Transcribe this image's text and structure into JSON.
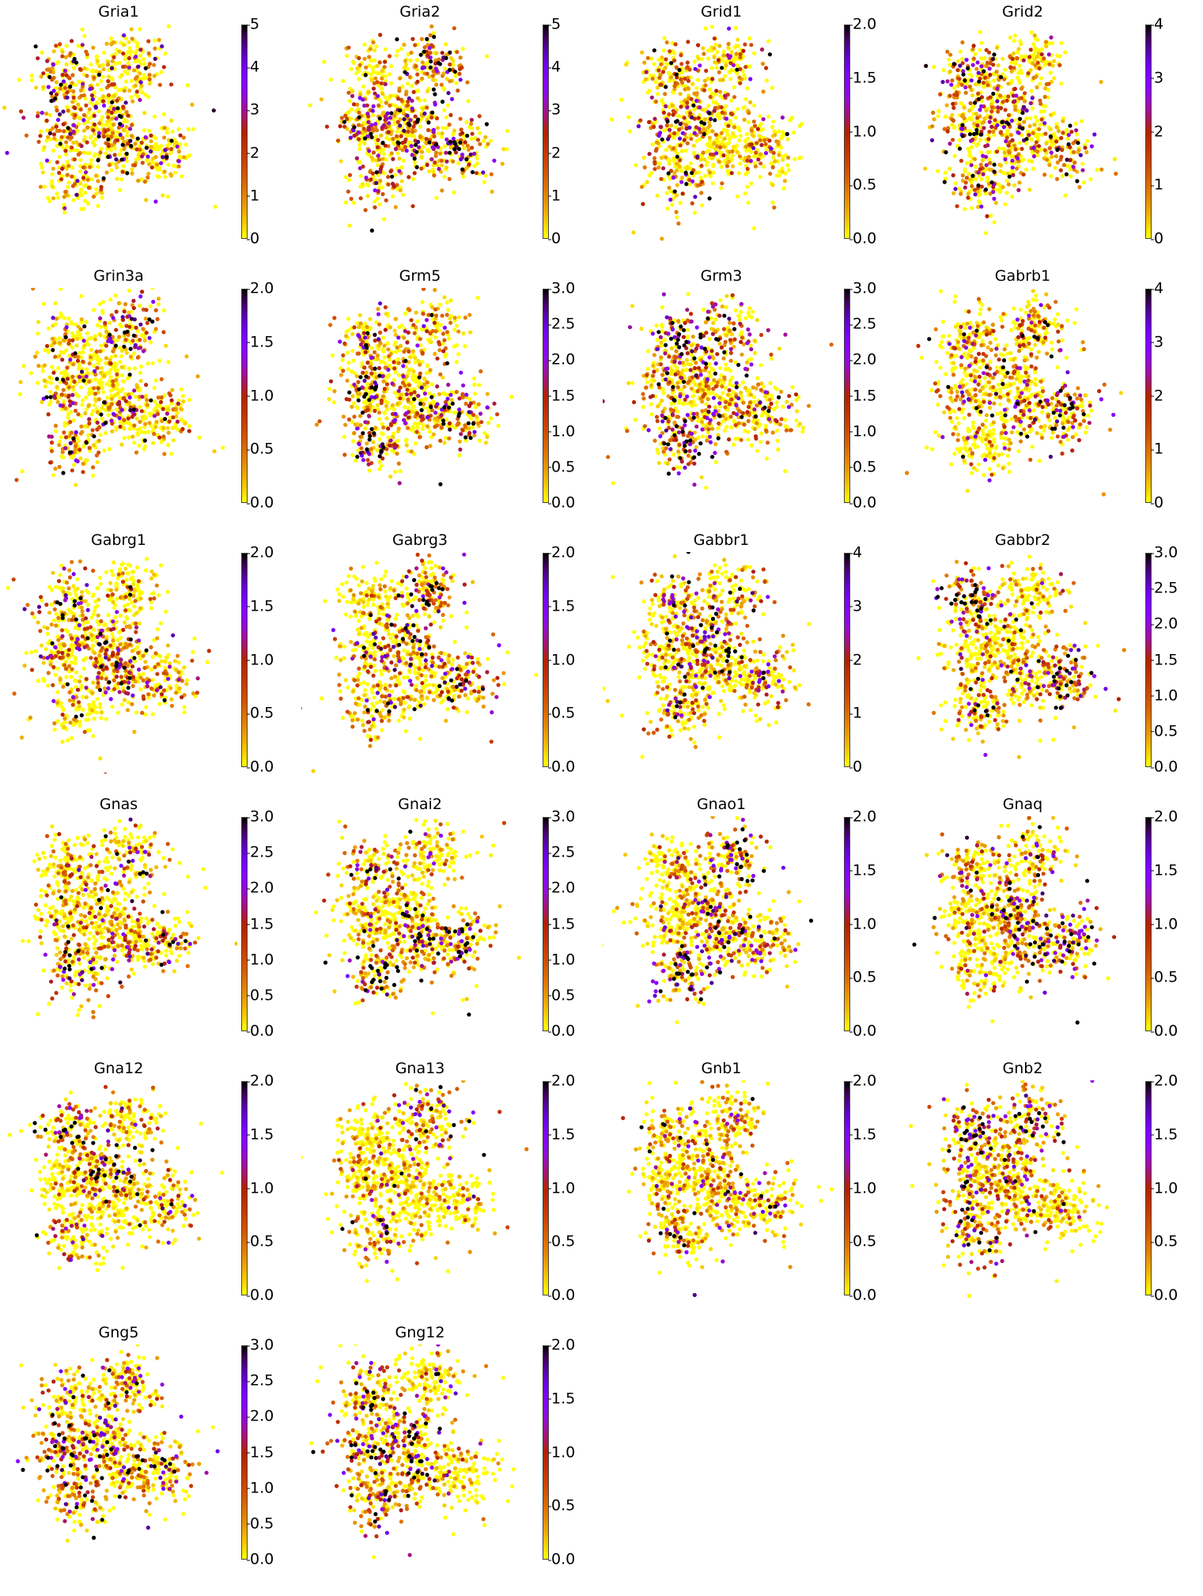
{
  "chart_data": {
    "type": "scatter",
    "description_of_layout": "embedding",
    "colormap": "gnuplot_r",
    "clusters": [
      {
        "x": -5.4,
        "y": 5.8
      },
      {
        "x": 0.4,
        "y": 6.9
      },
      {
        "x": -5.7,
        "y": 0.9
      },
      {
        "x": -2.0,
        "y": 1.9
      },
      {
        "x": -0.5,
        "y": -1.2
      },
      {
        "x": 3.5,
        "y": -1.5
      },
      {
        "x": -4.7,
        "y": -4.2
      }
    ],
    "xlim": [
      -11,
      10
    ],
    "ylim": [
      -10,
      10
    ],
    "panels": [
      {
        "title": "Gria1",
        "vmax": 5,
        "ticks": [
          "0",
          "1",
          "2",
          "3",
          "4",
          "5"
        ]
      },
      {
        "title": "Gria2",
        "vmax": 5,
        "ticks": [
          "0",
          "1",
          "2",
          "3",
          "4",
          "5"
        ]
      },
      {
        "title": "Grid1",
        "vmax": 2,
        "ticks": [
          "0.0",
          "0.5",
          "1.0",
          "1.5",
          "2.0"
        ]
      },
      {
        "title": "Grid2",
        "vmax": 4,
        "ticks": [
          "0",
          "1",
          "2",
          "3",
          "4"
        ]
      },
      {
        "title": "Grin3a",
        "vmax": 2,
        "ticks": [
          "0.0",
          "0.5",
          "1.0",
          "1.5",
          "2.0"
        ]
      },
      {
        "title": "Grm5",
        "vmax": 3,
        "ticks": [
          "0.0",
          "0.5",
          "1.0",
          "1.5",
          "2.0",
          "2.5",
          "3.0"
        ]
      },
      {
        "title": "Grm3",
        "vmax": 3,
        "ticks": [
          "0.0",
          "0.5",
          "1.0",
          "1.5",
          "2.0",
          "2.5",
          "3.0"
        ]
      },
      {
        "title": "Gabrb1",
        "vmax": 4,
        "ticks": [
          "0",
          "1",
          "2",
          "3",
          "4"
        ]
      },
      {
        "title": "Gabrg1",
        "vmax": 2,
        "ticks": [
          "0.0",
          "0.5",
          "1.0",
          "1.5",
          "2.0"
        ]
      },
      {
        "title": "Gabrg3",
        "vmax": 2,
        "ticks": [
          "0.0",
          "0.5",
          "1.0",
          "1.5",
          "2.0"
        ]
      },
      {
        "title": "Gabbr1",
        "vmax": 4,
        "ticks": [
          "0",
          "1",
          "2",
          "3",
          "4"
        ]
      },
      {
        "title": "Gabbr2",
        "vmax": 3,
        "ticks": [
          "0.0",
          "0.5",
          "1.0",
          "1.5",
          "2.0",
          "2.5",
          "3.0"
        ]
      },
      {
        "title": "Gnas",
        "vmax": 3,
        "ticks": [
          "0.0",
          "0.5",
          "1.0",
          "1.5",
          "2.0",
          "2.5",
          "3.0"
        ]
      },
      {
        "title": "Gnai2",
        "vmax": 3,
        "ticks": [
          "0.0",
          "0.5",
          "1.0",
          "1.5",
          "2.0",
          "2.5",
          "3.0"
        ]
      },
      {
        "title": "Gnao1",
        "vmax": 2,
        "ticks": [
          "0.0",
          "0.5",
          "1.0",
          "1.5",
          "2.0"
        ]
      },
      {
        "title": "Gnaq",
        "vmax": 2,
        "ticks": [
          "0.0",
          "0.5",
          "1.0",
          "1.5",
          "2.0"
        ]
      },
      {
        "title": "Gna12",
        "vmax": 2,
        "ticks": [
          "0.0",
          "0.5",
          "1.0",
          "1.5",
          "2.0"
        ]
      },
      {
        "title": "Gna13",
        "vmax": 2,
        "ticks": [
          "0.0",
          "0.5",
          "1.0",
          "1.5",
          "2.0"
        ]
      },
      {
        "title": "Gnb1",
        "vmax": 2,
        "ticks": [
          "0.0",
          "0.5",
          "1.0",
          "1.5",
          "2.0"
        ]
      },
      {
        "title": "Gnb2",
        "vmax": 2,
        "ticks": [
          "0.0",
          "0.5",
          "1.0",
          "1.5",
          "2.0"
        ]
      },
      {
        "title": "Gng5",
        "vmax": 3,
        "ticks": [
          "0.0",
          "0.5",
          "1.0",
          "1.5",
          "2.0",
          "2.5",
          "3.0"
        ]
      },
      {
        "title": "Gng12",
        "vmax": 2,
        "ticks": [
          "0.0",
          "0.5",
          "1.0",
          "1.5",
          "2.0"
        ]
      }
    ]
  }
}
